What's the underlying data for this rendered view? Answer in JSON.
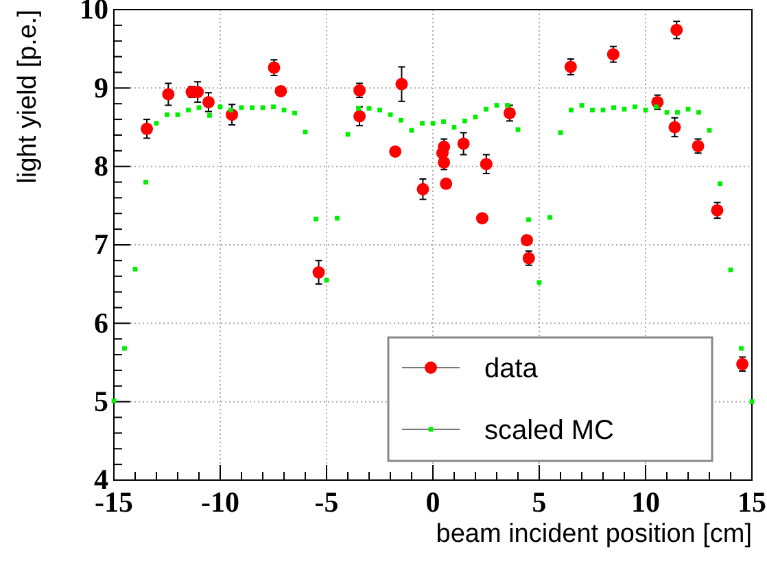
{
  "chart_data": {
    "type": "scatter",
    "xlabel": "beam incident position [cm]",
    "ylabel": "light yield [p.e.]",
    "xlim": [
      -15,
      15
    ],
    "ylim": [
      4,
      10
    ],
    "xticks": [
      -15,
      {
        "value": -14,
        "label": null
      },
      {
        "value": -13,
        "label": null
      },
      {
        "value": -12,
        "label": null
      },
      {
        "value": -11,
        "label": null
      },
      -10,
      {
        "value": -9,
        "label": null
      },
      {
        "value": -8,
        "label": null
      },
      {
        "value": -7,
        "label": null
      },
      {
        "value": -6,
        "label": null
      },
      -5,
      {
        "value": -4,
        "label": null
      },
      {
        "value": -3,
        "label": null
      },
      {
        "value": -2,
        "label": null
      },
      {
        "value": -1,
        "label": null
      },
      0,
      {
        "value": 1,
        "label": null
      },
      {
        "value": 2,
        "label": null
      },
      {
        "value": 3,
        "label": null
      },
      {
        "value": 4,
        "label": null
      },
      5,
      {
        "value": 6,
        "label": null
      },
      {
        "value": 7,
        "label": null
      },
      {
        "value": 8,
        "label": null
      },
      {
        "value": 9,
        "label": null
      },
      10,
      {
        "value": 11,
        "label": null
      },
      {
        "value": 12,
        "label": null
      },
      {
        "value": 13,
        "label": null
      },
      {
        "value": 14,
        "label": null
      },
      15
    ],
    "yticks": [
      4,
      {
        "value": 4.2,
        "label": null
      },
      {
        "value": 4.4,
        "label": null
      },
      {
        "value": 4.6,
        "label": null
      },
      {
        "value": 4.8,
        "label": null
      },
      5,
      {
        "value": 5.2,
        "label": null
      },
      {
        "value": 5.4,
        "label": null
      },
      {
        "value": 5.6,
        "label": null
      },
      {
        "value": 5.8,
        "label": null
      },
      6,
      {
        "value": 6.2,
        "label": null
      },
      {
        "value": 6.4,
        "label": null
      },
      {
        "value": 6.6,
        "label": null
      },
      {
        "value": 6.8,
        "label": null
      },
      7,
      {
        "value": 7.2,
        "label": null
      },
      {
        "value": 7.4,
        "label": null
      },
      {
        "value": 7.6,
        "label": null
      },
      {
        "value": 7.8,
        "label": null
      },
      8,
      {
        "value": 8.2,
        "label": null
      },
      {
        "value": 8.4,
        "label": null
      },
      {
        "value": 8.6,
        "label": null
      },
      {
        "value": 8.8,
        "label": null
      },
      9,
      {
        "value": 9.2,
        "label": null
      },
      {
        "value": 9.4,
        "label": null
      },
      {
        "value": 9.6,
        "label": null
      },
      {
        "value": 9.8,
        "label": null
      },
      10
    ],
    "grid": true,
    "legend": "bottom right",
    "series": [
      {
        "name": "data",
        "color": "#ff0000",
        "marker": "circle",
        "x": [
          -13.45,
          -12.44,
          -11.34,
          -11.06,
          -10.55,
          -9.45,
          -7.47,
          -7.15,
          -5.37,
          -3.45,
          -3.45,
          -1.77,
          -1.47,
          -0.47,
          0.45,
          0.52,
          0.52,
          0.62,
          1.44,
          2.32,
          2.51,
          3.61,
          4.42,
          4.51,
          6.48,
          8.48,
          10.56,
          11.37,
          11.46,
          12.47,
          13.37,
          14.55
        ],
        "values": [
          8.48,
          8.92,
          8.95,
          8.95,
          8.82,
          8.66,
          9.26,
          8.96,
          6.65,
          8.97,
          8.64,
          8.19,
          9.05,
          7.71,
          8.17,
          8.25,
          8.05,
          7.78,
          8.29,
          7.34,
          8.03,
          8.68,
          7.06,
          6.83,
          9.27,
          9.43,
          8.82,
          8.5,
          9.74,
          8.26,
          7.44,
          5.48
        ],
        "errors": [
          0.12,
          0.14,
          0.07,
          0.13,
          0.12,
          0.13,
          0.1,
          null,
          0.15,
          0.09,
          0.12,
          null,
          0.22,
          0.13,
          null,
          0.1,
          0.09,
          null,
          0.14,
          null,
          0.12,
          0.1,
          null,
          0.09,
          0.1,
          0.1,
          0.09,
          0.12,
          0.11,
          0.09,
          0.1,
          0.09
        ]
      },
      {
        "name": "scaled MC",
        "color": "#00ee00",
        "marker": "square",
        "x": [
          -15,
          -14.5,
          -14,
          -13.5,
          -13,
          -12.5,
          -12,
          -11.5,
          -11,
          -10.5,
          -10,
          -9.5,
          -9,
          -8.5,
          -8,
          -7.5,
          -7,
          -6.5,
          -6,
          -5.5,
          -5,
          -4.5,
          -4,
          -3.5,
          -3,
          -2.5,
          -2,
          -1.5,
          -1,
          -0.5,
          0,
          0.5,
          1,
          1.5,
          2,
          2.5,
          3,
          3.5,
          4,
          4.5,
          5,
          5.5,
          6,
          6.5,
          7,
          7.5,
          8,
          8.5,
          9,
          9.5,
          10,
          10.5,
          11,
          11.5,
          12,
          12.5,
          13,
          13.5,
          14,
          14.5,
          15
        ],
        "values": [
          5.01,
          5.68,
          6.69,
          7.8,
          8.55,
          8.66,
          8.66,
          8.72,
          8.75,
          8.65,
          8.76,
          8.72,
          8.75,
          8.75,
          8.75,
          8.76,
          8.72,
          8.68,
          8.44,
          7.33,
          6.55,
          7.34,
          8.41,
          8.74,
          8.74,
          8.72,
          8.66,
          8.59,
          8.46,
          8.55,
          8.55,
          8.57,
          8.5,
          8.58,
          8.63,
          8.73,
          8.78,
          8.78,
          8.47,
          7.32,
          6.52,
          7.35,
          8.43,
          8.72,
          8.78,
          8.72,
          8.72,
          8.75,
          8.73,
          8.76,
          8.72,
          8.76,
          8.69,
          8.69,
          8.73,
          8.69,
          8.46,
          7.78,
          6.68,
          5.68,
          5.0
        ]
      }
    ]
  }
}
